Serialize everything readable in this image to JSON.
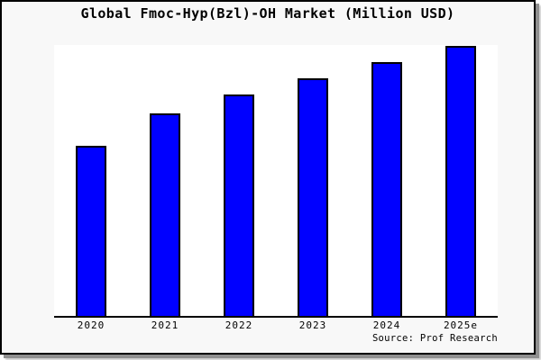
{
  "chart": {
    "title": "Global Fmoc-Hyp(Bzl)-OH Market (Million USD)",
    "source": "Source: Prof Research"
  },
  "chart_data": {
    "type": "bar",
    "title": "Global Fmoc-Hyp(Bzl)-OH Market (Million USD)",
    "categories": [
      "2020",
      "2021",
      "2022",
      "2023",
      "2024",
      "2025e"
    ],
    "values": [
      63,
      75,
      82,
      88,
      94,
      100
    ],
    "value_note": "no y-axis tick labels shown; values estimated relative, normalized to 2025e = 100",
    "xlabel": "",
    "ylabel": "",
    "ylim": [
      0,
      100
    ],
    "grid": false,
    "legend": false,
    "source": "Source: Prof Research",
    "colors": {
      "bar_fill": "#0000ff",
      "bar_border": "#000000",
      "axis_line": "#000000",
      "plot_background": "#ffffff",
      "outer_background": "#f8f8f8",
      "frame_border": "#000000",
      "text": "#000000"
    }
  }
}
